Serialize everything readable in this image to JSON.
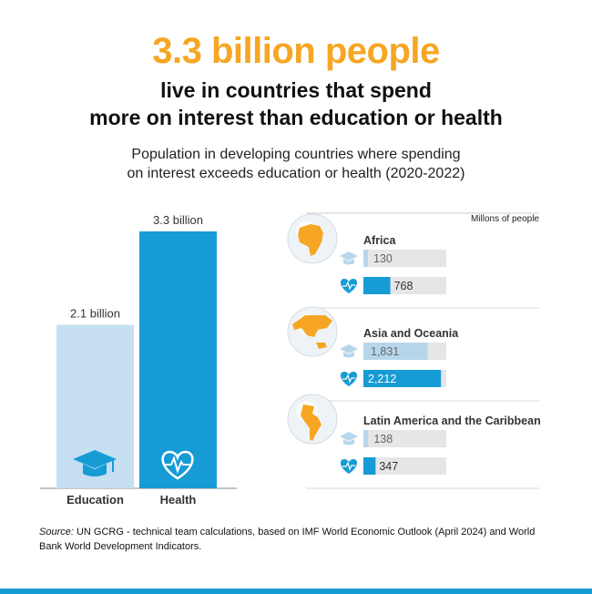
{
  "header": {
    "headline": "3.3 billion people",
    "subtitle_line1": "live in countries that spend",
    "subtitle_line2": "more on interest than education or health",
    "desc_line1": "Population in developing countries where spending",
    "desc_line2": "on interest exceeds education or health (2020-2022)"
  },
  "source": {
    "prefix": "Source:",
    "text": " UN GCRG - technical team calculations, based on IMF World Economic Outlook (April 2024) and World Bank World Development Indicators."
  },
  "colors": {
    "orange": "#f6a623",
    "blue": "#169bd5",
    "light_blue": "#c6dff2",
    "bar_track": "#e6e6e6",
    "faded_blue": "#b7d6ec"
  },
  "chart_data": [
    {
      "type": "bar",
      "categories": [
        "Education",
        "Health"
      ],
      "values": [
        2.1,
        3.3
      ],
      "data_labels": [
        "2.1 billion",
        "3.3 billion"
      ],
      "icons": [
        "graduation-cap-icon",
        "heart-pulse-icon"
      ],
      "ylim": [
        0,
        3.3
      ]
    },
    {
      "type": "bar",
      "orientation": "horizontal",
      "unit_label": "Millons of people",
      "xlim": [
        0,
        2800
      ],
      "groups": [
        {
          "name": "Africa",
          "icon": "globe-africa-icon",
          "education": 130,
          "health": 768,
          "education_label": "130",
          "health_label": "768"
        },
        {
          "name": "Asia and Oceania",
          "icon": "globe-asia-icon",
          "education": 1831,
          "health": 2212,
          "education_label": "1,831",
          "health_label": "2,212"
        },
        {
          "name": "Latin America and the Caribbean",
          "icon": "globe-americas-icon",
          "education": 138,
          "health": 347,
          "education_label": "138",
          "health_label": "347"
        }
      ]
    }
  ]
}
